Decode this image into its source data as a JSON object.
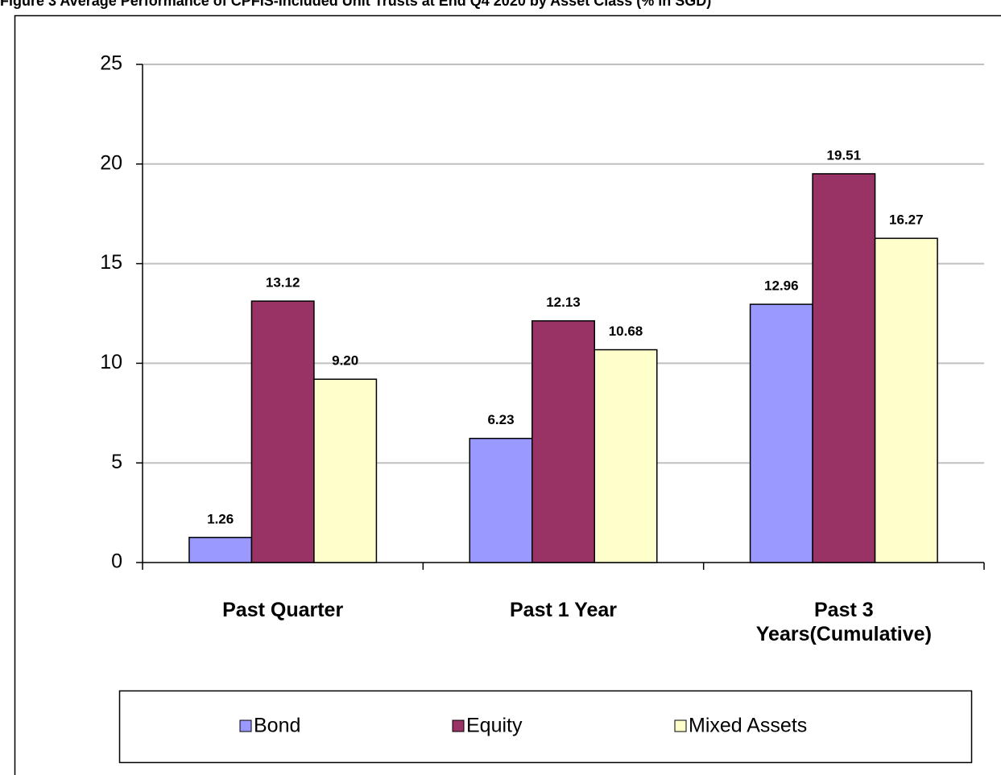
{
  "chart_data": {
    "type": "bar",
    "title": "Figure 3 Average Performance of CPFIS-Included Unit Trusts at End Q4 2020 by Asset Class (% in SGD)",
    "categories": [
      "Past Quarter",
      "Past 1 Year",
      "Past 3 Years(Cumulative)"
    ],
    "series": [
      {
        "name": "Bond",
        "color": "#9999ff",
        "values": [
          1.26,
          6.23,
          12.96
        ],
        "value_labels": [
          "1.26",
          "6.23",
          "12.96"
        ]
      },
      {
        "name": "Equity",
        "color": "#993366",
        "values": [
          13.12,
          12.13,
          19.51
        ],
        "value_labels": [
          "13.12",
          "12.13",
          "19.51"
        ]
      },
      {
        "name": "Mixed Assets",
        "color": "#ffffcc",
        "values": [
          9.2,
          10.68,
          16.27
        ],
        "value_labels": [
          "9.20",
          "10.68",
          "16.27"
        ]
      }
    ],
    "ylim": [
      0,
      25
    ],
    "yticks": [
      0,
      5,
      10,
      15,
      20,
      25
    ],
    "grid": true,
    "legend": "bottom"
  }
}
